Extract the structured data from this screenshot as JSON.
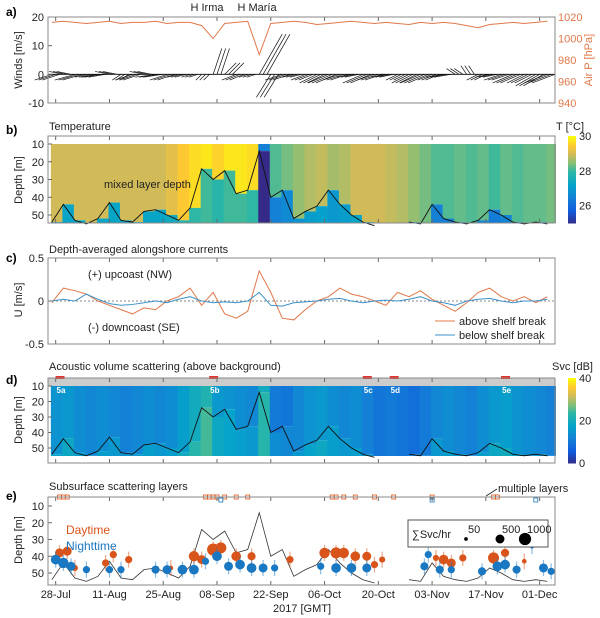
{
  "chart_data": [
    {
      "panel": "a)",
      "type": "line",
      "annotations": [
        "H Irma",
        "H María"
      ],
      "ylabel": "Winds [m/s]",
      "ylim": [
        -10,
        20
      ],
      "yticks": [
        "20",
        "10",
        "0",
        "-10"
      ],
      "ylabel_right": "Air P [hPa]",
      "ylim_right": [
        940,
        1020
      ],
      "yticks_right": [
        "1020",
        "1000",
        "980",
        "960",
        "940"
      ],
      "pressure_color": "#e0784a",
      "dates": [
        "07-27",
        "07-30",
        "08-02",
        "08-05",
        "08-08",
        "08-11",
        "08-14",
        "08-17",
        "08-20",
        "08-23",
        "08-26",
        "08-29",
        "09-01",
        "09-04",
        "09-07",
        "09-10",
        "09-13",
        "09-16",
        "09-19",
        "09-22",
        "09-25",
        "09-28",
        "10-01",
        "10-04",
        "10-07",
        "10-10",
        "10-13",
        "10-16",
        "10-19",
        "10-22",
        "10-25",
        "10-28",
        "10-31",
        "11-03",
        "11-06",
        "11-09",
        "11-12",
        "11-15",
        "11-18",
        "11-21",
        "11-24",
        "11-27",
        "11-30",
        "12-03"
      ],
      "air_pressure": [
        1015,
        1016,
        1015,
        1014,
        1015,
        1016,
        1014,
        1015,
        1015,
        1016,
        1014,
        1015,
        1015,
        1012,
        1000,
        1014,
        1015,
        1016,
        985,
        1014,
        1015,
        1016,
        1015,
        1013,
        1014,
        1015,
        1016,
        1015,
        1014,
        1015,
        1014,
        1013,
        1015,
        1014,
        1015,
        1014,
        1012,
        1010,
        1013,
        1014,
        1015,
        1014,
        1015,
        1016
      ],
      "wind_u": [
        -6,
        -5,
        -7,
        -4,
        -6,
        -5,
        -3,
        -6,
        -5,
        -7,
        -6,
        -4,
        -3,
        -2,
        3,
        4,
        -5,
        -3,
        8,
        -5,
        -6,
        -4,
        -5,
        -6,
        -7,
        -6,
        -5,
        -7,
        -6,
        -5,
        -4,
        -6,
        -7,
        -5,
        -6,
        -3,
        -2,
        -4,
        -5,
        -6,
        -7,
        -6,
        -7,
        -8
      ],
      "wind_v": [
        -2,
        1,
        -2,
        -1,
        -1,
        1,
        -2,
        -2,
        1,
        -1,
        -2,
        -1,
        -1,
        -2,
        9,
        4,
        -2,
        -1,
        14,
        -8,
        -2,
        -1,
        -2,
        -3,
        -3,
        -2,
        -1,
        -3,
        -2,
        -1,
        -2,
        -3,
        -3,
        -2,
        -1,
        2,
        3,
        -2,
        -1,
        -2,
        -3,
        -3,
        -4,
        -3
      ]
    },
    {
      "panel": "b)",
      "type": "heatmap",
      "title": "Temperature",
      "ylabel": "Depth [m]",
      "yticks": [
        "10",
        "20",
        "30",
        "40",
        "50"
      ],
      "colorbar_label": "T [°C]",
      "colorbar_ticks": [
        "30",
        "28",
        "26"
      ],
      "clim": [
        25,
        30
      ],
      "annotation": "mixed layer depth",
      "surface_temperature": [
        29,
        29,
        29,
        29,
        29,
        29,
        29,
        29,
        29,
        29,
        29.2,
        29.5,
        29.7,
        29.8,
        29.6,
        29.8,
        29.8,
        29.7,
        26.5,
        28.2,
        28.4,
        28.6,
        28.8,
        28.9,
        28.7,
        28.8,
        29,
        29,
        29,
        28.9,
        28.8,
        28.6,
        28.4,
        28.2,
        28.2,
        28.3,
        28.2,
        28.3,
        28.1,
        28.3,
        28.2,
        28.3,
        28.3,
        28.4
      ],
      "mixed_layer_depth": [
        54,
        44,
        53,
        55,
        52,
        43,
        53,
        54,
        48,
        47,
        50,
        53,
        46,
        24,
        30,
        25,
        38,
        36,
        14,
        40,
        36,
        52,
        48,
        45,
        36,
        44,
        50,
        54,
        56,
        null,
        null,
        54,
        55,
        44,
        52,
        54,
        55,
        53,
        47,
        50,
        54,
        55,
        54,
        55
      ]
    },
    {
      "panel": "c)",
      "type": "line",
      "title": "Depth-averaged alongshore currents",
      "ylabel": "U [m/s]",
      "ylim": [
        -0.5,
        0.5
      ],
      "yticks": [
        "0.5",
        "0",
        "-0.5"
      ],
      "annotations": [
        "(+) upcoast (NW)",
        "(-) downcoast (SE)"
      ],
      "series": [
        {
          "name": "above shelf break",
          "color": "#e0784a",
          "values": [
            -0.02,
            0.15,
            0.12,
            0.08,
            0.0,
            -0.05,
            -0.1,
            -0.15,
            -0.08,
            -0.1,
            0.0,
            0.05,
            0.15,
            -0.05,
            0.1,
            -0.15,
            -0.2,
            -0.12,
            0.35,
            0.1,
            -0.2,
            -0.22,
            -0.1,
            0.0,
            0.05,
            0.15,
            0.08,
            0.05,
            0.0,
            -0.05,
            0.1,
            0.05,
            0.12,
            0.02,
            -0.05,
            -0.12,
            -0.02,
            0.1,
            0.15,
            0.05,
            0.0,
            0.05,
            -0.02,
            0.05
          ]
        },
        {
          "name": "below shelf break",
          "color": "#3d92c9",
          "values": [
            0.0,
            0.02,
            0.0,
            0.08,
            0.02,
            -0.03,
            -0.05,
            -0.04,
            -0.02,
            0.0,
            -0.02,
            0.02,
            0.05,
            0.0,
            -0.02,
            -0.01,
            -0.02,
            0.0,
            0.1,
            -0.05,
            -0.06,
            -0.02,
            -0.01,
            0.0,
            0.02,
            0.03,
            0.0,
            -0.02,
            0.0,
            0.01,
            0.0,
            0.02,
            0.05,
            0.0,
            -0.02,
            -0.05,
            0.0,
            0.02,
            0.03,
            0.0,
            -0.02,
            0.0,
            0.0,
            0.02
          ]
        }
      ],
      "legend_placement": "bottom-right"
    },
    {
      "panel": "d)",
      "type": "heatmap",
      "title": "Acoustic volume scattering (above background)",
      "ylabel": "Depth [m]",
      "yticks": [
        "10",
        "20",
        "30",
        "40",
        "50"
      ],
      "colorbar_label": "Svc [dB]",
      "colorbar_ticks": [
        "40",
        "20",
        "0"
      ],
      "clim": [
        0,
        40
      ],
      "marker_color": "#e8302a",
      "markers": [
        {
          "label": "5a",
          "date": "07-29"
        },
        {
          "label": "5b",
          "date": "09-07"
        },
        {
          "label": "5c",
          "date": "10-17"
        },
        {
          "label": "5d",
          "date": "10-24"
        },
        {
          "label": "5e",
          "date": "11-22"
        }
      ],
      "mean_sv": [
        15,
        16,
        14,
        13,
        14,
        13,
        12,
        13,
        14,
        13,
        14,
        17,
        20,
        22,
        16,
        15,
        14,
        13,
        20,
        11,
        10,
        13,
        15,
        16,
        14,
        13,
        14,
        12,
        10,
        11,
        10,
        9,
        11,
        13,
        14,
        13,
        12,
        14,
        16,
        17,
        15,
        14,
        13,
        12
      ]
    },
    {
      "panel": "e)",
      "type": "scatter",
      "title": "Subsurface scattering layers",
      "ylabel": "Depth [m]",
      "yticks": [
        "10",
        "20",
        "30",
        "40",
        "50"
      ],
      "xlabel": "2017 [GMT]",
      "xticks": [
        "28-Jul",
        "11-Aug",
        "25-Aug",
        "08-Sep",
        "22-Sep",
        "06-Oct",
        "20-Oct",
        "03-Nov",
        "17-Nov",
        "01-Dec"
      ],
      "annotation": "multiple layers",
      "legend_title": "∑Svc/hr",
      "legend_sizes": [
        50,
        500,
        1000
      ],
      "series": [
        {
          "name": "Daytime",
          "color": "#d9541a",
          "points": [
            [
              "07-29",
              38,
              500
            ],
            [
              "07-31",
              37,
              500
            ],
            [
              "08-02",
              47,
              200
            ],
            [
              "08-10",
              44,
              300
            ],
            [
              "08-12",
              39,
              300
            ],
            [
              "08-16",
              42,
              300
            ],
            [
              "08-27",
              47,
              100
            ],
            [
              "09-02",
              40,
              700
            ],
            [
              "09-04",
              42,
              500
            ],
            [
              "09-07",
              36,
              1000
            ],
            [
              "09-09",
              35,
              800
            ],
            [
              "09-13",
              40,
              600
            ],
            [
              "09-17",
              40,
              400
            ],
            [
              "09-27",
              42,
              300
            ],
            [
              "10-06",
              38,
              700
            ],
            [
              "10-09",
              38,
              800
            ],
            [
              "10-11",
              38,
              700
            ],
            [
              "10-14",
              40,
              600
            ],
            [
              "10-17",
              40,
              500
            ],
            [
              "10-19",
              45,
              300
            ],
            [
              "10-21",
              42,
              200
            ],
            [
              "11-04",
              41,
              200
            ],
            [
              "11-06",
              42,
              600
            ],
            [
              "11-08",
              44,
              500
            ],
            [
              "11-11",
              41,
              300
            ],
            [
              "11-19",
              41,
              800
            ],
            [
              "11-22",
              38,
              400
            ],
            [
              "11-27",
              43,
              100
            ]
          ],
          "multiple_layers": [
            "07-29",
            "07-30",
            "07-31",
            "09-05",
            "09-06",
            "09-07",
            "09-08",
            "09-10",
            "09-13",
            "09-16",
            "10-08",
            "10-09",
            "10-11",
            "10-14",
            "10-19",
            "10-24",
            "11-03",
            "11-19",
            "11-20"
          ]
        },
        {
          "name": "Nighttime",
          "color": "#1a78c2",
          "points": [
            [
              "07-28",
              42,
              600
            ],
            [
              "07-30",
              44,
              700
            ],
            [
              "08-01",
              46,
              500
            ],
            [
              "08-05",
              48,
              300
            ],
            [
              "08-11",
              48,
              300
            ],
            [
              "08-14",
              48,
              300
            ],
            [
              "08-23",
              48,
              400
            ],
            [
              "08-26",
              48,
              500
            ],
            [
              "08-30",
              48,
              600
            ],
            [
              "09-02",
              48,
              600
            ],
            [
              "09-05",
              43,
              300
            ],
            [
              "09-08",
              40,
              600
            ],
            [
              "09-11",
              46,
              500
            ],
            [
              "09-14",
              45,
              600
            ],
            [
              "09-17",
              47,
              600
            ],
            [
              "09-20",
              47,
              500
            ],
            [
              "09-23",
              47,
              300
            ],
            [
              "10-05",
              46,
              300
            ],
            [
              "10-09",
              47,
              600
            ],
            [
              "10-13",
              47,
              600
            ],
            [
              "10-17",
              47,
              500
            ],
            [
              "11-01",
              46,
              400
            ],
            [
              "11-02",
              39,
              300
            ],
            [
              "11-05",
              48,
              400
            ],
            [
              "11-08",
              48,
              300
            ],
            [
              "11-16",
              49,
              400
            ],
            [
              "11-20",
              46,
              600
            ],
            [
              "11-22",
              45,
              600
            ],
            [
              "11-25",
              48,
              400
            ],
            [
              "11-29",
              34,
              100
            ],
            [
              "12-02",
              47,
              500
            ],
            [
              "12-04",
              49,
              300
            ]
          ],
          "multiple_layers": [
            "09-09",
            "11-03",
            "11-30"
          ]
        }
      ]
    }
  ]
}
